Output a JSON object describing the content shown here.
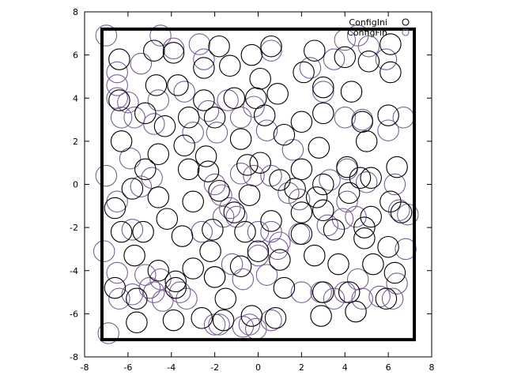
{
  "chart_data": {
    "type": "scatter",
    "xlim": [
      -8,
      8
    ],
    "ylim": [
      -8,
      8
    ],
    "xticks": [
      "-8",
      "-6",
      "-4",
      "-2",
      "0",
      "2",
      "4",
      "6",
      "8"
    ],
    "yticks": [
      "-8",
      "-6",
      "-4",
      "-2",
      "0",
      "2",
      "4",
      "6",
      "8"
    ],
    "grid": false,
    "legend_position": "top-right",
    "marker": "open-circle",
    "marker_radius": 0.48,
    "box": {
      "x": [
        -7.2,
        7.2
      ],
      "y": [
        -7.2,
        7.2
      ],
      "color": "#000000"
    },
    "series": [
      {
        "name": "ConfigIni",
        "color": "#000000",
        "points": [
          [
            -6.4,
            5.8
          ],
          [
            -4.8,
            6.2
          ],
          [
            -3.9,
            6.1
          ],
          [
            -2.5,
            5.4
          ],
          [
            -1.8,
            6.4
          ],
          [
            -1.3,
            5.5
          ],
          [
            -0.3,
            6.0
          ],
          [
            0.6,
            6.4
          ],
          [
            2.6,
            6.2
          ],
          [
            3.0,
            4.5
          ],
          [
            4.0,
            5.9
          ],
          [
            5.1,
            5.7
          ],
          [
            6.1,
            6.5
          ],
          [
            -6.4,
            3.9
          ],
          [
            -5.2,
            3.3
          ],
          [
            -4.7,
            4.6
          ],
          [
            -3.7,
            4.6
          ],
          [
            -2.5,
            3.9
          ],
          [
            -1.1,
            4.0
          ],
          [
            -0.1,
            4.0
          ],
          [
            0.1,
            4.9
          ],
          [
            0.9,
            4.2
          ],
          [
            2.1,
            5.2
          ],
          [
            6.1,
            5.2
          ],
          [
            4.3,
            4.3
          ],
          [
            -6.3,
            2.0
          ],
          [
            -4.3,
            2.7
          ],
          [
            -3.2,
            3.1
          ],
          [
            -2.0,
            3.1
          ],
          [
            -0.8,
            2.1
          ],
          [
            0.3,
            3.2
          ],
          [
            1.2,
            2.3
          ],
          [
            2.0,
            2.9
          ],
          [
            3.0,
            3.3
          ],
          [
            4.8,
            2.9
          ],
          [
            5.0,
            2.0
          ],
          [
            6.0,
            3.2
          ],
          [
            -4.6,
            1.4
          ],
          [
            -3.4,
            1.8
          ],
          [
            -2.4,
            1.3
          ],
          [
            -0.5,
            0.9
          ],
          [
            2.8,
            1.7
          ],
          [
            4.1,
            0.8
          ],
          [
            -5.2,
            0.7
          ],
          [
            -3.2,
            0.7
          ],
          [
            -2.3,
            0.6
          ],
          [
            0.1,
            1.0
          ],
          [
            1.0,
            0.2
          ],
          [
            2.0,
            0.7
          ],
          [
            3.0,
            0.0
          ],
          [
            4.7,
            0.3
          ],
          [
            5.2,
            0.3
          ],
          [
            6.4,
            0.8
          ],
          [
            -6.6,
            -1.1
          ],
          [
            -5.8,
            -0.2
          ],
          [
            -4.6,
            -0.6
          ],
          [
            -3.0,
            -0.8
          ],
          [
            -1.8,
            -0.3
          ],
          [
            -0.4,
            -0.5
          ],
          [
            1.7,
            -0.2
          ],
          [
            2.7,
            -0.6
          ],
          [
            4.2,
            -0.4
          ],
          [
            6.1,
            -0.8
          ],
          [
            -6.3,
            -2.2
          ],
          [
            -5.3,
            -2.2
          ],
          [
            -4.2,
            -1.6
          ],
          [
            -3.5,
            -2.4
          ],
          [
            -2.1,
            -2.1
          ],
          [
            -1.1,
            -1.3
          ],
          [
            -0.6,
            -2.2
          ],
          [
            0.6,
            -1.7
          ],
          [
            2.0,
            -1.3
          ],
          [
            3.0,
            -1.2
          ],
          [
            3.5,
            -2.1
          ],
          [
            4.9,
            -2.5
          ],
          [
            5.2,
            -1.5
          ],
          [
            6.6,
            -1.3
          ],
          [
            -5.7,
            -3.3
          ],
          [
            -4.6,
            -4.0
          ],
          [
            -3.8,
            -4.5
          ],
          [
            -3.0,
            -3.9
          ],
          [
            -2.2,
            -3.1
          ],
          [
            -2.0,
            -4.3
          ],
          [
            -0.8,
            -3.8
          ],
          [
            0.0,
            -3.1
          ],
          [
            1.0,
            -3.5
          ],
          [
            2.0,
            -2.3
          ],
          [
            2.6,
            -3.3
          ],
          [
            3.7,
            -3.7
          ],
          [
            4.9,
            -2.0
          ],
          [
            5.3,
            -3.7
          ],
          [
            6.0,
            -2.9
          ],
          [
            6.3,
            -4.1
          ],
          [
            -6.6,
            -4.8
          ],
          [
            -5.6,
            -5.3
          ],
          [
            -3.8,
            -4.8
          ],
          [
            -1.5,
            -5.3
          ],
          [
            1.2,
            -4.8
          ],
          [
            3.0,
            -5.0
          ],
          [
            4.2,
            -5.0
          ],
          [
            5.9,
            -5.3
          ],
          [
            -5.6,
            -6.4
          ],
          [
            -3.9,
            -6.3
          ],
          [
            -2.6,
            -6.2
          ],
          [
            -1.6,
            -6.3
          ],
          [
            -0.3,
            -6.1
          ],
          [
            0.8,
            -6.2
          ],
          [
            2.9,
            -6.1
          ],
          [
            4.5,
            -5.9
          ]
        ]
      },
      {
        "name": "ConfigFin",
        "color": "#7a5f96",
        "points": [
          [
            -7.0,
            6.9
          ],
          [
            -4.5,
            6.9
          ],
          [
            -3.9,
            6.3
          ],
          [
            -2.7,
            6.5
          ],
          [
            -2.5,
            5.8
          ],
          [
            0.6,
            6.2
          ],
          [
            4.0,
            6.7
          ],
          [
            4.6,
            6.9
          ],
          [
            5.1,
            6.4
          ],
          [
            5.9,
            5.8
          ],
          [
            -6.5,
            5.2
          ],
          [
            -5.4,
            5.6
          ],
          [
            -6.5,
            4.6
          ],
          [
            -6.5,
            4.0
          ],
          [
            -6.0,
            3.8
          ],
          [
            -5.7,
            3.1
          ],
          [
            -4.6,
            3.9
          ],
          [
            -3.4,
            4.3
          ],
          [
            -2.3,
            3.4
          ],
          [
            -0.2,
            3.6
          ],
          [
            0.4,
            2.5
          ],
          [
            1.6,
            1.6
          ],
          [
            2.4,
            5.4
          ],
          [
            3.0,
            4.3
          ],
          [
            3.5,
            5.8
          ],
          [
            4.0,
            3.1
          ],
          [
            4.8,
            3.0
          ],
          [
            6.0,
            2.5
          ],
          [
            6.7,
            3.1
          ],
          [
            -6.3,
            3.1
          ],
          [
            -4.8,
            2.8
          ],
          [
            -3.0,
            2.4
          ],
          [
            -1.9,
            2.4
          ],
          [
            -0.8,
            3.1
          ],
          [
            -1.4,
            3.9
          ],
          [
            -5.9,
            1.2
          ],
          [
            -5.4,
            -0.1
          ],
          [
            -4.9,
            0.3
          ],
          [
            -7.0,
            0.4
          ],
          [
            -6.5,
            -0.8
          ],
          [
            -2.0,
            0.0
          ],
          [
            -1.7,
            -0.5
          ],
          [
            -1.3,
            -1.1
          ],
          [
            -0.8,
            0.5
          ],
          [
            -0.2,
            0.4
          ],
          [
            0.6,
            0.4
          ],
          [
            1.4,
            -0.4
          ],
          [
            1.9,
            -0.7
          ],
          [
            3.3,
            0.2
          ],
          [
            4.1,
            0.7
          ],
          [
            5.0,
            0.1
          ],
          [
            6.3,
            0.0
          ],
          [
            6.5,
            -1.2
          ],
          [
            6.9,
            -1.4
          ],
          [
            -5.8,
            -2.1
          ],
          [
            -2.6,
            -2.2
          ],
          [
            -1.6,
            -1.5
          ],
          [
            -1.0,
            -1.5
          ],
          [
            0.0,
            -2.2
          ],
          [
            0.6,
            -2.2
          ],
          [
            1.0,
            -2.7
          ],
          [
            1.9,
            -2.3
          ],
          [
            3.2,
            -1.9
          ],
          [
            3.9,
            -1.6
          ],
          [
            4.5,
            -1.5
          ],
          [
            4.1,
            -0.8
          ],
          [
            -7.1,
            -3.1
          ],
          [
            -6.5,
            -4.1
          ],
          [
            -5.2,
            -4.2
          ],
          [
            -4.8,
            -5.0
          ],
          [
            -4.4,
            -5.4
          ],
          [
            -3.6,
            -5.0
          ],
          [
            -3.3,
            -5.3
          ],
          [
            -2.0,
            -4.3
          ],
          [
            -1.2,
            -3.7
          ],
          [
            -0.7,
            -4.4
          ],
          [
            0.0,
            -3.3
          ],
          [
            0.4,
            -4.2
          ],
          [
            0.9,
            -3.0
          ],
          [
            2.0,
            -5.0
          ],
          [
            2.9,
            -5.0
          ],
          [
            3.5,
            -5.3
          ],
          [
            4.0,
            -5.0
          ],
          [
            4.6,
            -4.4
          ],
          [
            4.8,
            -5.3
          ],
          [
            5.6,
            -5.2
          ],
          [
            6.2,
            -5.3
          ],
          [
            6.4,
            -4.6
          ],
          [
            6.8,
            -3.0
          ],
          [
            -6.4,
            -5.3
          ],
          [
            -5.8,
            -5.1
          ],
          [
            -5.0,
            -4.8
          ],
          [
            -4.5,
            -4.4
          ],
          [
            -6.9,
            -6.9
          ],
          [
            -2.0,
            -6.5
          ],
          [
            -1.8,
            -6.5
          ],
          [
            -0.7,
            -6.6
          ],
          [
            -0.4,
            -6.5
          ],
          [
            -0.1,
            -6.7
          ],
          [
            0.6,
            -6.3
          ]
        ]
      }
    ]
  }
}
